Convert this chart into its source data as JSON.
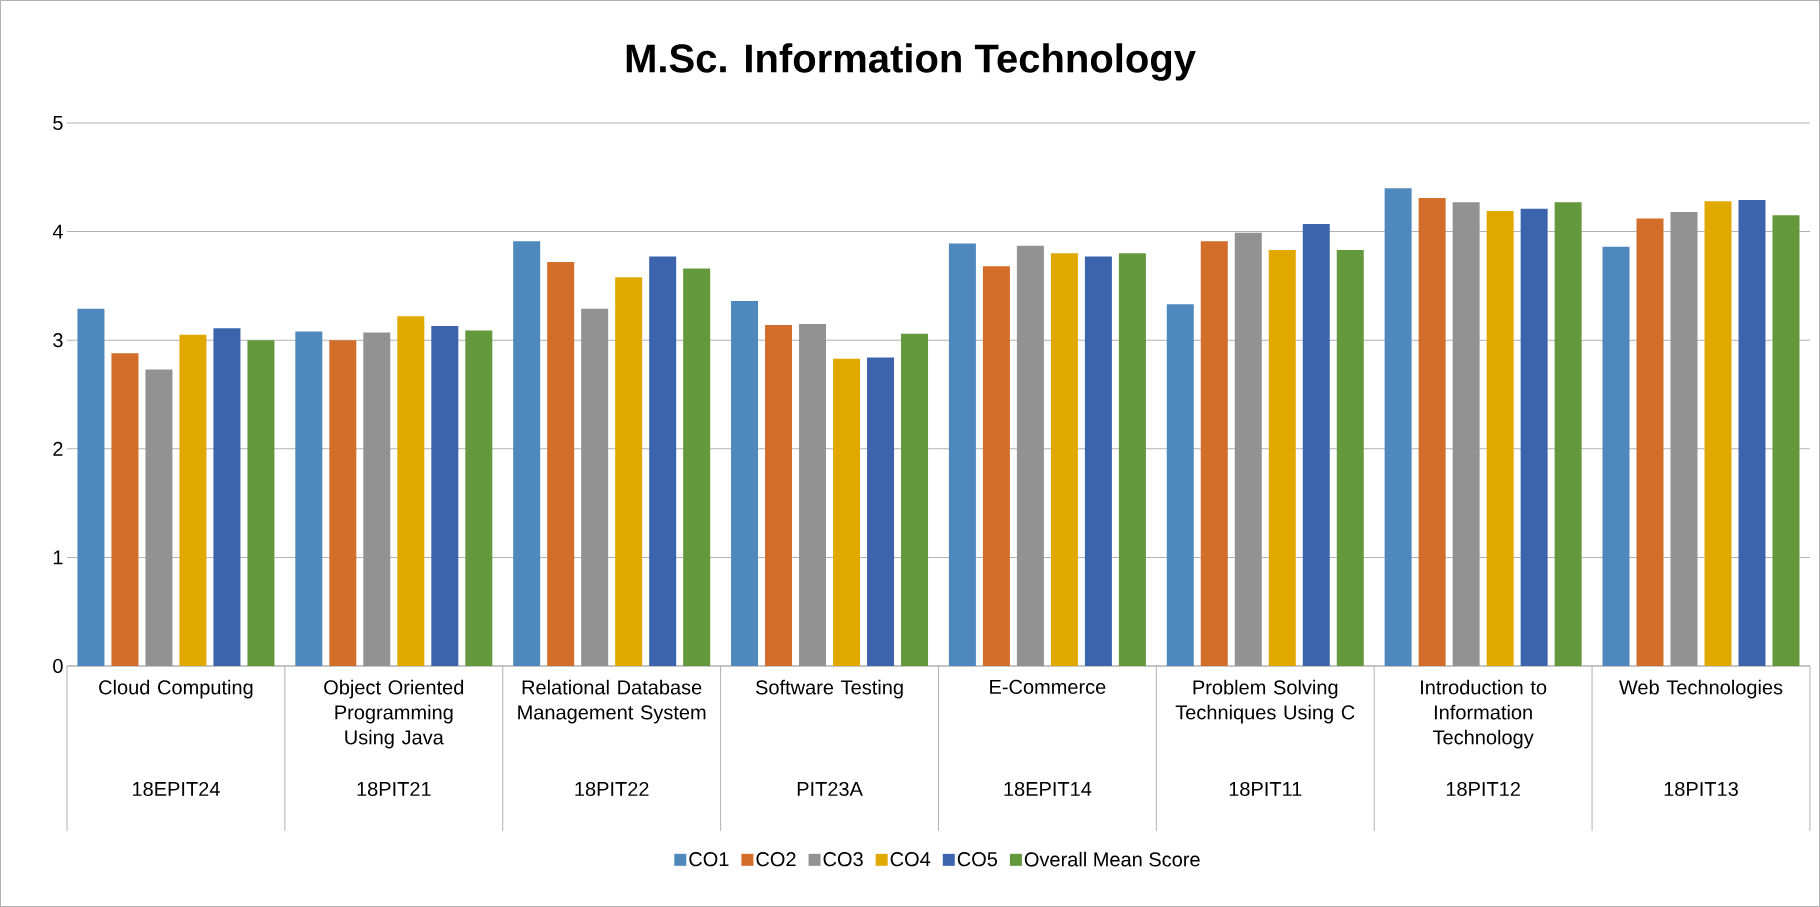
{
  "chart_data": {
    "type": "bar",
    "title": "M.Sc. Information Technology",
    "categories": [
      "Cloud Computing",
      "Object Oriented Programming Using Java",
      "Relational Database Management System",
      "Software Testing",
      "E-Commerce",
      "Problem Solving Techniques Using C",
      "Introduction to Information Technology",
      "Web Technologies"
    ],
    "series": [
      {
        "name": "CO1",
        "color": "#4f88bc",
        "values": [
          3.29,
          3.08,
          3.91,
          3.36,
          3.89,
          3.33,
          4.4,
          3.86
        ]
      },
      {
        "name": "CO2",
        "color": "#d36d2a",
        "values": [
          2.88,
          3.0,
          3.72,
          3.14,
          3.68,
          3.91,
          4.31,
          4.12
        ]
      },
      {
        "name": "CO3",
        "color": "#929292",
        "values": [
          2.73,
          3.07,
          3.29,
          3.15,
          3.87,
          3.99,
          4.27,
          4.18
        ]
      },
      {
        "name": "CO4",
        "color": "#e1a900",
        "values": [
          3.05,
          3.22,
          3.58,
          2.83,
          3.8,
          3.83,
          4.19,
          4.28
        ]
      },
      {
        "name": "CO5",
        "color": "#3c64ad",
        "values": [
          3.11,
          3.13,
          3.77,
          2.84,
          3.77,
          4.07,
          4.21,
          4.29
        ]
      },
      {
        "name": "Overall Mean Score",
        "color": "#63983d",
        "values": [
          3.0,
          3.09,
          3.66,
          3.06,
          3.8,
          3.83,
          4.27,
          4.15
        ]
      }
    ],
    "annotations": [
      "18EPIT24",
      "18PIT21",
      "18PIT22",
      "PIT23A",
      "18EPIT14",
      "18PIT11",
      "18PIT12",
      "18PIT13"
    ],
    "ylim": [
      0,
      5
    ],
    "yticks": [
      0,
      1,
      2,
      3,
      4,
      5
    ],
    "grid": "y",
    "legend": "bottom"
  }
}
